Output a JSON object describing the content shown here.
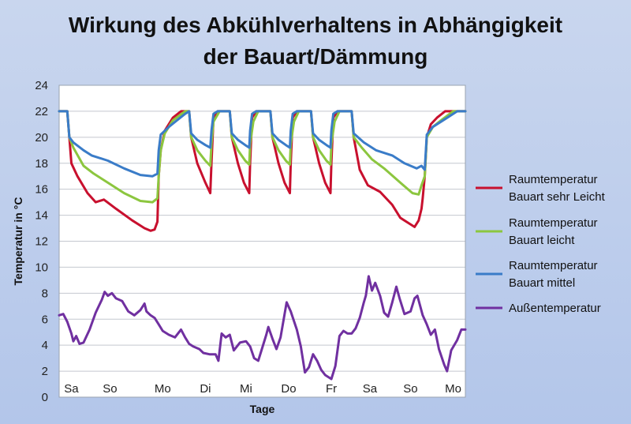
{
  "chart_data": {
    "type": "line",
    "title_line1": "Wirkung des Abkühlverhaltens in Abhängigkeit",
    "title_line2": "der Bauart/Dämmung",
    "xlabel": "Tage",
    "ylabel": "Temperatur in °C",
    "ylim": [
      0,
      24
    ],
    "yticks": [
      0,
      2,
      4,
      6,
      8,
      10,
      12,
      14,
      16,
      18,
      20,
      22,
      24
    ],
    "xlim": [
      0,
      10
    ],
    "day_labels": [
      {
        "label": "Sa",
        "x": 0.3
      },
      {
        "label": "So",
        "x": 1.25
      },
      {
        "label": "Mo",
        "x": 2.55
      },
      {
        "label": "Di",
        "x": 3.6
      },
      {
        "label": "Mi",
        "x": 4.6
      },
      {
        "label": "Do",
        "x": 5.65
      },
      {
        "label": "Fr",
        "x": 6.7
      },
      {
        "label": "Sa",
        "x": 7.65
      },
      {
        "label": "So",
        "x": 8.65
      },
      {
        "label": "Mo",
        "x": 9.7
      }
    ],
    "grid": true,
    "legend_position": "right",
    "series": [
      {
        "name": "Raumtemperatur Bauart sehr Leicht",
        "legend_lines": [
          "Raumtemperatur",
          "Bauart sehr Leicht"
        ],
        "color": "#c8102e",
        "points": [
          [
            0,
            22
          ],
          [
            0.2,
            22
          ],
          [
            0.25,
            20
          ],
          [
            0.3,
            18
          ],
          [
            0.45,
            17
          ],
          [
            0.7,
            15.7
          ],
          [
            0.9,
            15
          ],
          [
            1.1,
            15.2
          ],
          [
            1.4,
            14.5
          ],
          [
            1.8,
            13.6
          ],
          [
            2.1,
            13
          ],
          [
            2.25,
            12.8
          ],
          [
            2.35,
            12.9
          ],
          [
            2.42,
            13.5
          ],
          [
            2.45,
            17
          ],
          [
            2.5,
            19
          ],
          [
            2.6,
            20.5
          ],
          [
            2.8,
            21.5
          ],
          [
            3.0,
            22
          ],
          [
            3.2,
            22
          ],
          [
            3.2,
            22
          ],
          [
            3.25,
            20
          ],
          [
            3.4,
            18
          ],
          [
            3.6,
            16.5
          ],
          [
            3.72,
            15.7
          ],
          [
            3.75,
            18
          ],
          [
            3.8,
            21.5
          ],
          [
            3.9,
            22
          ],
          [
            4.2,
            22
          ],
          [
            4.25,
            20
          ],
          [
            4.4,
            18
          ],
          [
            4.55,
            16.5
          ],
          [
            4.68,
            15.7
          ],
          [
            4.7,
            18
          ],
          [
            4.75,
            21.5
          ],
          [
            4.85,
            22
          ],
          [
            5.2,
            22
          ],
          [
            5.25,
            20
          ],
          [
            5.4,
            18
          ],
          [
            5.55,
            16.5
          ],
          [
            5.68,
            15.7
          ],
          [
            5.7,
            18
          ],
          [
            5.75,
            21.5
          ],
          [
            5.85,
            22
          ],
          [
            6.2,
            22
          ],
          [
            6.25,
            20
          ],
          [
            6.4,
            18
          ],
          [
            6.55,
            16.5
          ],
          [
            6.68,
            15.7
          ],
          [
            6.7,
            18
          ],
          [
            6.75,
            21.5
          ],
          [
            6.85,
            22
          ],
          [
            7.2,
            22
          ],
          [
            7.25,
            20
          ],
          [
            7.4,
            17.5
          ],
          [
            7.6,
            16.3
          ],
          [
            7.9,
            15.8
          ],
          [
            8.2,
            14.8
          ],
          [
            8.4,
            13.8
          ],
          [
            8.6,
            13.4
          ],
          [
            8.75,
            13.1
          ],
          [
            8.85,
            13.6
          ],
          [
            8.92,
            14.5
          ],
          [
            8.95,
            15.3
          ],
          [
            9.0,
            17
          ],
          [
            9.05,
            20
          ],
          [
            9.15,
            21
          ],
          [
            9.3,
            21.5
          ],
          [
            9.5,
            22
          ],
          [
            10,
            22
          ]
        ]
      },
      {
        "name": "Raumtemperatur Bauart leicht",
        "legend_lines": [
          "Raumtemperatur",
          "Bauart leicht"
        ],
        "color": "#8cc63f",
        "points": [
          [
            0,
            22
          ],
          [
            0.2,
            22
          ],
          [
            0.25,
            20
          ],
          [
            0.35,
            19.2
          ],
          [
            0.6,
            17.8
          ],
          [
            0.85,
            17.2
          ],
          [
            1.2,
            16.5
          ],
          [
            1.6,
            15.7
          ],
          [
            2.0,
            15.1
          ],
          [
            2.3,
            15
          ],
          [
            2.42,
            15.3
          ],
          [
            2.45,
            17
          ],
          [
            2.5,
            19
          ],
          [
            2.6,
            20.3
          ],
          [
            2.8,
            21.3
          ],
          [
            3.1,
            22
          ],
          [
            3.2,
            22
          ],
          [
            3.25,
            20
          ],
          [
            3.4,
            19
          ],
          [
            3.6,
            18.2
          ],
          [
            3.72,
            17.8
          ],
          [
            3.75,
            19.5
          ],
          [
            3.8,
            21.2
          ],
          [
            3.95,
            22
          ],
          [
            4.2,
            22
          ],
          [
            4.25,
            20
          ],
          [
            4.4,
            19
          ],
          [
            4.58,
            18.2
          ],
          [
            4.68,
            17.9
          ],
          [
            4.7,
            19.5
          ],
          [
            4.78,
            21.2
          ],
          [
            4.9,
            22
          ],
          [
            5.2,
            22
          ],
          [
            5.25,
            20
          ],
          [
            5.4,
            19
          ],
          [
            5.58,
            18.2
          ],
          [
            5.68,
            17.9
          ],
          [
            5.7,
            19.5
          ],
          [
            5.78,
            21.2
          ],
          [
            5.9,
            22
          ],
          [
            6.2,
            22
          ],
          [
            6.25,
            20
          ],
          [
            6.4,
            19
          ],
          [
            6.58,
            18.2
          ],
          [
            6.68,
            17.9
          ],
          [
            6.7,
            19.5
          ],
          [
            6.78,
            21.2
          ],
          [
            6.9,
            22
          ],
          [
            7.2,
            22
          ],
          [
            7.25,
            20
          ],
          [
            7.45,
            19.2
          ],
          [
            7.7,
            18.3
          ],
          [
            8.0,
            17.6
          ],
          [
            8.4,
            16.5
          ],
          [
            8.7,
            15.7
          ],
          [
            8.85,
            15.6
          ],
          [
            8.92,
            16.3
          ],
          [
            9.0,
            17
          ],
          [
            9.05,
            20
          ],
          [
            9.2,
            20.8
          ],
          [
            9.4,
            21.3
          ],
          [
            9.7,
            22
          ],
          [
            10,
            22
          ]
        ]
      },
      {
        "name": "Raumtemperatur Bauart mittel",
        "legend_lines": [
          "Raumtemperatur",
          "Bauart mittel"
        ],
        "color": "#3a7cc8",
        "points": [
          [
            0,
            22
          ],
          [
            0.2,
            22
          ],
          [
            0.25,
            20
          ],
          [
            0.35,
            19.6
          ],
          [
            0.6,
            19
          ],
          [
            0.8,
            18.6
          ],
          [
            1.2,
            18.2
          ],
          [
            1.6,
            17.6
          ],
          [
            2.0,
            17.1
          ],
          [
            2.3,
            17
          ],
          [
            2.42,
            17.2
          ],
          [
            2.45,
            19
          ],
          [
            2.5,
            20.2
          ],
          [
            2.7,
            20.8
          ],
          [
            2.9,
            21.3
          ],
          [
            3.1,
            21.8
          ],
          [
            3.2,
            22
          ],
          [
            3.25,
            20.3
          ],
          [
            3.4,
            19.8
          ],
          [
            3.6,
            19.4
          ],
          [
            3.72,
            19.2
          ],
          [
            3.75,
            20.5
          ],
          [
            3.8,
            21.8
          ],
          [
            3.9,
            22
          ],
          [
            4.2,
            22
          ],
          [
            4.25,
            20.3
          ],
          [
            4.4,
            19.8
          ],
          [
            4.58,
            19.4
          ],
          [
            4.68,
            19.2
          ],
          [
            4.7,
            20.5
          ],
          [
            4.75,
            21.8
          ],
          [
            4.85,
            22
          ],
          [
            5.2,
            22
          ],
          [
            5.25,
            20.3
          ],
          [
            5.4,
            19.8
          ],
          [
            5.58,
            19.4
          ],
          [
            5.68,
            19.2
          ],
          [
            5.7,
            20.5
          ],
          [
            5.75,
            21.8
          ],
          [
            5.85,
            22
          ],
          [
            6.2,
            22
          ],
          [
            6.25,
            20.3
          ],
          [
            6.4,
            19.8
          ],
          [
            6.58,
            19.4
          ],
          [
            6.68,
            19.2
          ],
          [
            6.7,
            20.5
          ],
          [
            6.75,
            21.8
          ],
          [
            6.85,
            22
          ],
          [
            7.2,
            22
          ],
          [
            7.25,
            20.3
          ],
          [
            7.5,
            19.6
          ],
          [
            7.8,
            19
          ],
          [
            8.2,
            18.6
          ],
          [
            8.5,
            18
          ],
          [
            8.8,
            17.6
          ],
          [
            8.92,
            17.8
          ],
          [
            9.0,
            17.5
          ],
          [
            9.05,
            20.2
          ],
          [
            9.2,
            20.8
          ],
          [
            9.5,
            21.4
          ],
          [
            9.8,
            22
          ],
          [
            10,
            22
          ]
        ]
      },
      {
        "name": "Außentemperatur",
        "legend_lines": [
          "Außentemperatur"
        ],
        "color": "#7030a0",
        "points": [
          [
            0,
            6.3
          ],
          [
            0.1,
            6.4
          ],
          [
            0.2,
            5.8
          ],
          [
            0.3,
            4.9
          ],
          [
            0.35,
            4.3
          ],
          [
            0.42,
            4.7
          ],
          [
            0.5,
            4.1
          ],
          [
            0.6,
            4.2
          ],
          [
            0.75,
            5.2
          ],
          [
            0.9,
            6.5
          ],
          [
            1.05,
            7.5
          ],
          [
            1.12,
            8.1
          ],
          [
            1.2,
            7.8
          ],
          [
            1.3,
            8
          ],
          [
            1.4,
            7.6
          ],
          [
            1.55,
            7.4
          ],
          [
            1.7,
            6.6
          ],
          [
            1.85,
            6.3
          ],
          [
            2.0,
            6.7
          ],
          [
            2.1,
            7.2
          ],
          [
            2.15,
            6.6
          ],
          [
            2.25,
            6.3
          ],
          [
            2.35,
            6.1
          ],
          [
            2.45,
            5.6
          ],
          [
            2.55,
            5.1
          ],
          [
            2.7,
            4.8
          ],
          [
            2.85,
            4.6
          ],
          [
            3.0,
            5.2
          ],
          [
            3.1,
            4.6
          ],
          [
            3.2,
            4.1
          ],
          [
            3.3,
            3.9
          ],
          [
            3.45,
            3.7
          ],
          [
            3.55,
            3.4
          ],
          [
            3.7,
            3.3
          ],
          [
            3.85,
            3.3
          ],
          [
            3.92,
            2.8
          ],
          [
            4.0,
            4.9
          ],
          [
            4.1,
            4.6
          ],
          [
            4.2,
            4.8
          ],
          [
            4.3,
            3.6
          ],
          [
            4.45,
            4.2
          ],
          [
            4.6,
            4.3
          ],
          [
            4.7,
            3.9
          ],
          [
            4.8,
            3.0
          ],
          [
            4.9,
            2.8
          ],
          [
            5.0,
            3.8
          ],
          [
            5.1,
            4.8
          ],
          [
            5.15,
            5.4
          ],
          [
            5.25,
            4.5
          ],
          [
            5.35,
            3.7
          ],
          [
            5.45,
            4.6
          ],
          [
            5.6,
            7.3
          ],
          [
            5.7,
            6.6
          ],
          [
            5.85,
            5.2
          ],
          [
            5.95,
            3.9
          ],
          [
            6.05,
            1.9
          ],
          [
            6.15,
            2.3
          ],
          [
            6.25,
            3.3
          ],
          [
            6.35,
            2.8
          ],
          [
            6.45,
            2.1
          ],
          [
            6.55,
            1.7
          ],
          [
            6.7,
            1.4
          ],
          [
            6.8,
            2.4
          ],
          [
            6.9,
            4.7
          ],
          [
            7.0,
            5.1
          ],
          [
            7.1,
            4.9
          ],
          [
            7.2,
            4.9
          ],
          [
            7.3,
            5.3
          ],
          [
            7.4,
            6.1
          ],
          [
            7.5,
            7.3
          ],
          [
            7.55,
            7.8
          ],
          [
            7.62,
            9.3
          ],
          [
            7.7,
            8.2
          ],
          [
            7.78,
            8.8
          ],
          [
            7.9,
            7.8
          ],
          [
            8.0,
            6.5
          ],
          [
            8.1,
            6.2
          ],
          [
            8.2,
            7.3
          ],
          [
            8.3,
            8.5
          ],
          [
            8.38,
            7.6
          ],
          [
            8.5,
            6.4
          ],
          [
            8.65,
            6.6
          ],
          [
            8.75,
            7.6
          ],
          [
            8.82,
            7.8
          ],
          [
            8.95,
            6.3
          ],
          [
            9.05,
            5.6
          ],
          [
            9.15,
            4.8
          ],
          [
            9.25,
            5.2
          ],
          [
            9.35,
            3.7
          ],
          [
            9.48,
            2.5
          ],
          [
            9.55,
            2.0
          ],
          [
            9.65,
            3.6
          ],
          [
            9.8,
            4.4
          ],
          [
            9.9,
            5.2
          ],
          [
            10,
            5.2
          ]
        ]
      }
    ]
  }
}
